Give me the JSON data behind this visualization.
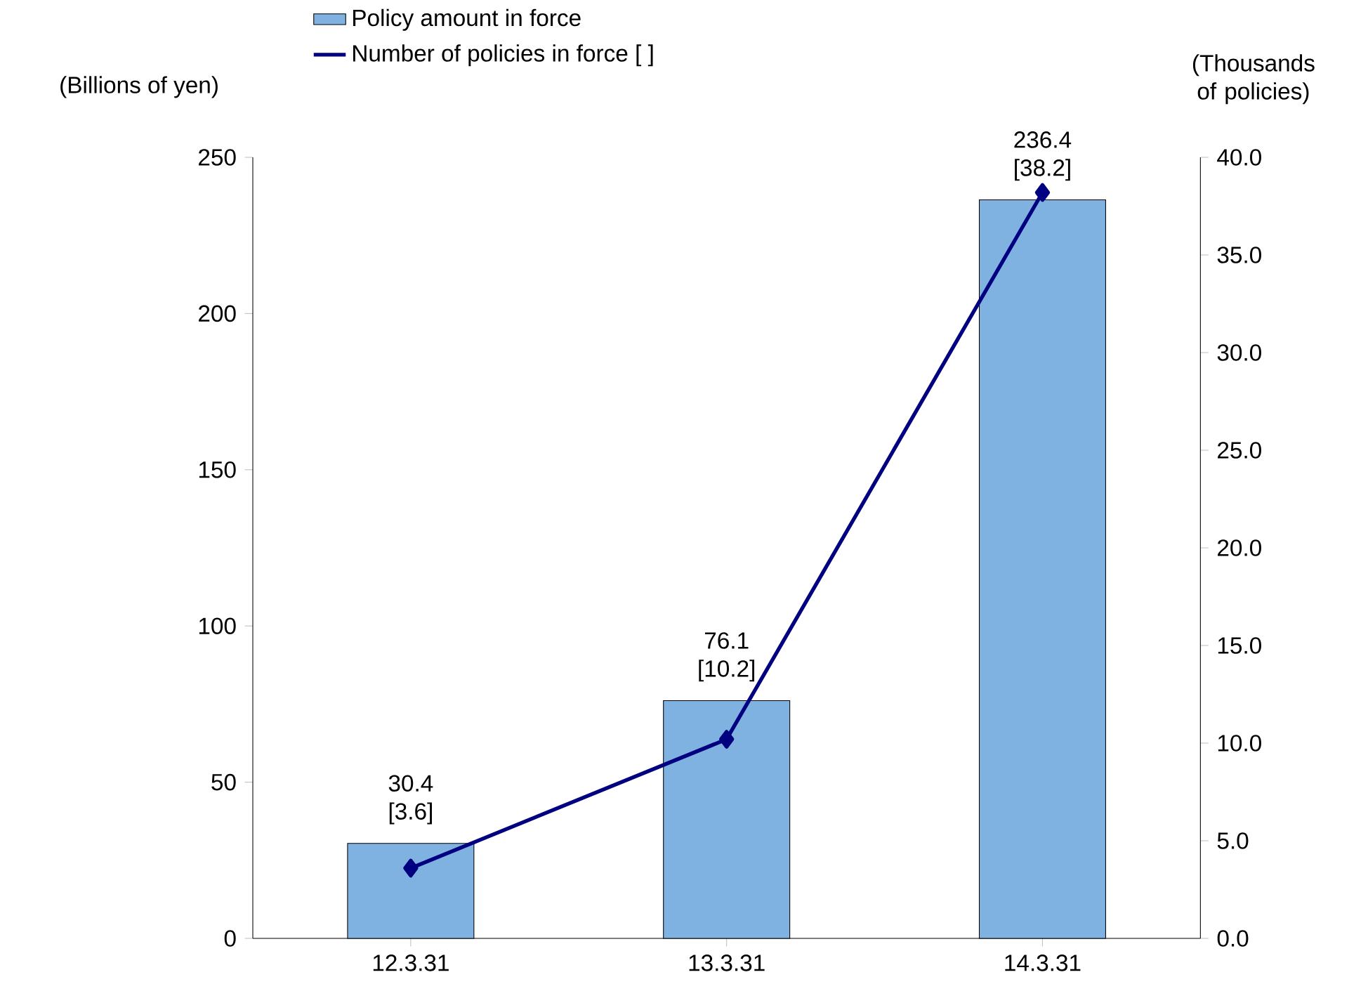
{
  "chart_data": {
    "type": "bar",
    "ylabel": "(Billions of yen)",
    "y2label": "(Thousands of policies)",
    "legend": "top",
    "marker": "diamond",
    "categories": [
      "12.3.31",
      "13.3.31",
      "14.3.31"
    ],
    "series": [
      {
        "name": "Policy amount in force",
        "color": "#7fb2e0",
        "values": [
          30.4,
          76.1,
          236.4
        ],
        "value_labels": [
          "30.4",
          "76.1",
          "236.4"
        ]
      },
      {
        "name": "Number of policies in force [ ]",
        "type": "line",
        "axis": "y2",
        "color": "#000080",
        "values": [
          3.6,
          10.2,
          38.2
        ],
        "value_labels": [
          "[3.6]",
          "[10.2]",
          "[38.2]"
        ]
      }
    ],
    "ylim": [
      0,
      250
    ],
    "yticks": [
      0,
      50,
      100,
      150,
      200,
      250
    ],
    "y2lim": [
      0,
      40
    ],
    "y2ticks": [
      {
        "value": 0,
        "label": "0.0"
      },
      {
        "value": 5,
        "label": "5.0"
      },
      {
        "value": 10,
        "label": "10.0"
      },
      {
        "value": 15,
        "label": "15.0"
      },
      {
        "value": 20,
        "label": "20.0"
      },
      {
        "value": 25,
        "label": "25.0"
      },
      {
        "value": 30,
        "label": "30.0"
      },
      {
        "value": 35,
        "label": "35.0"
      },
      {
        "value": 40,
        "label": "40.0"
      }
    ]
  }
}
